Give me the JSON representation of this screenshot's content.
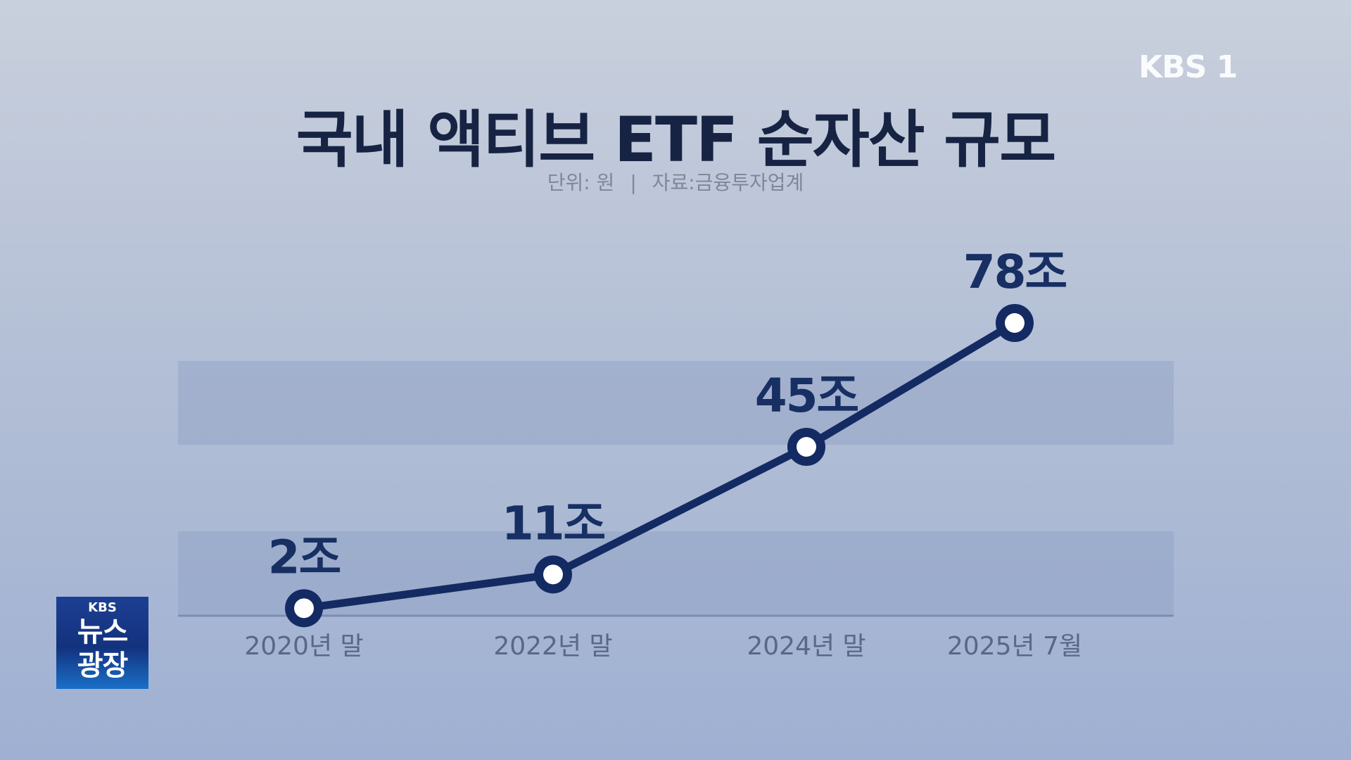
{
  "broadcast": {
    "channel_logo": "KBS 1",
    "show_badge": {
      "line1": "KBS",
      "line2": "뉴스",
      "line3": "광장"
    }
  },
  "chart_data": {
    "type": "line",
    "title": "국내 액티브 ETF 순자산 규모",
    "subtitle_unit": "단위: 원",
    "subtitle_sep": "|",
    "subtitle_source": "자료:금융투자업계",
    "categories": [
      "2020년 말",
      "2022년 말",
      "2024년 말",
      "2025년 7월"
    ],
    "values": [
      2,
      11,
      45,
      78
    ],
    "value_labels": [
      "2조",
      "11조",
      "45조",
      "78조"
    ],
    "ylim": [
      0,
      90
    ],
    "grid": true,
    "legend": "none",
    "colors": {
      "line": "#142a63",
      "marker_fill": "#ffffff",
      "band": "#8f9fc3"
    }
  }
}
